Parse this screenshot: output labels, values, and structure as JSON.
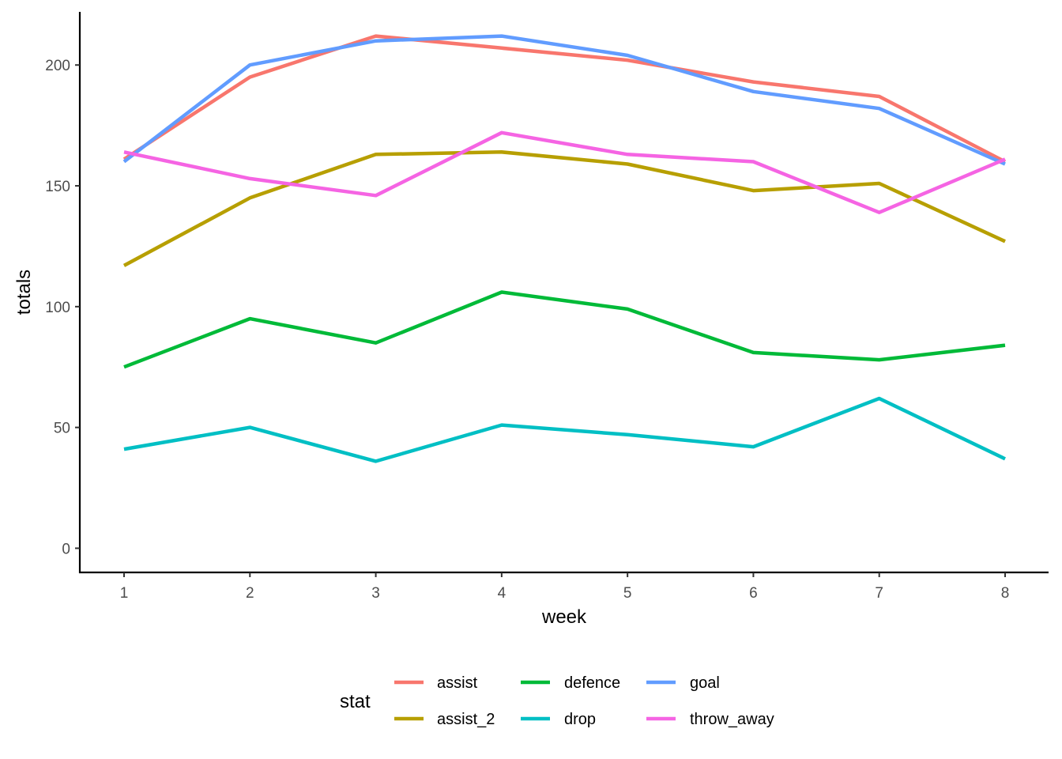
{
  "chart_data": {
    "type": "line",
    "title": "",
    "xlabel": "week",
    "ylabel": "totals",
    "x": [
      1,
      2,
      3,
      4,
      5,
      6,
      7,
      8
    ],
    "x_ticks": [
      "1",
      "2",
      "3",
      "4",
      "5",
      "6",
      "7",
      "8"
    ],
    "y_ticks": [
      "0",
      "50",
      "100",
      "150",
      "200"
    ],
    "ylim": [
      -10,
      222
    ],
    "grid": false,
    "legend_title": "stat",
    "legend_position": "bottom",
    "series": [
      {
        "name": "assist",
        "color": "#F8766D",
        "values": [
          161,
          195,
          212,
          207,
          202,
          193,
          187,
          160
        ]
      },
      {
        "name": "assist_2",
        "color": "#B79F00",
        "values": [
          117,
          145,
          163,
          164,
          159,
          148,
          151,
          127
        ]
      },
      {
        "name": "defence",
        "color": "#00BA38",
        "values": [
          75,
          95,
          85,
          106,
          99,
          81,
          78,
          84
        ]
      },
      {
        "name": "drop",
        "color": "#00BFC4",
        "values": [
          41,
          50,
          36,
          51,
          47,
          42,
          62,
          37
        ]
      },
      {
        "name": "goal",
        "color": "#619CFF",
        "values": [
          160,
          200,
          210,
          212,
          204,
          189,
          182,
          159
        ]
      },
      {
        "name": "throw_away",
        "color": "#F564E3",
        "values": [
          164,
          153,
          146,
          172,
          163,
          160,
          139,
          161
        ]
      }
    ]
  }
}
